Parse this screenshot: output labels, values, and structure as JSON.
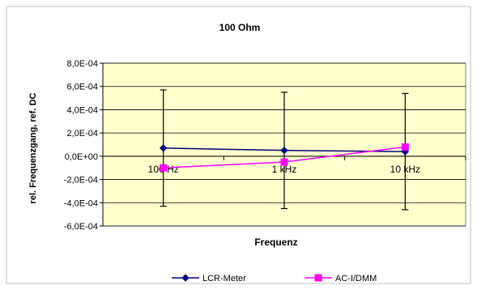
{
  "chart_data": {
    "type": "line",
    "title": "100 Ohm",
    "xlabel": "Frequenz",
    "ylabel": "rel. Frequenzgang, ref. DC",
    "categories": [
      "100 Hz",
      "1 kHz",
      "10 kHz"
    ],
    "ylim": [
      -0.0006,
      0.0008
    ],
    "yticks": [
      0.0008,
      0.0006,
      0.0004,
      0.0002,
      0.0,
      -0.0002,
      -0.0004,
      -0.0006
    ],
    "ytick_labels": [
      "8,0E-04",
      "6,0E-04",
      "4,0E-04",
      "2,0E-04",
      "0,0E+00",
      "-2,0E-04",
      "-4,0E-04",
      "-6,0E-04"
    ],
    "grid": true,
    "legend_position": "bottom",
    "series": [
      {
        "name": "LCR-Meter",
        "color": "#000080",
        "marker": "diamond",
        "values": [
          7e-05,
          5e-05,
          4e-05
        ],
        "error_low": [
          -0.00043,
          -0.00045,
          -0.00046
        ],
        "error_high": [
          0.00057,
          0.00055,
          0.00054
        ]
      },
      {
        "name": "AC-I/DMM",
        "color": "#ff00ff",
        "marker": "square",
        "values": [
          -0.0001,
          -5e-05,
          8e-05
        ]
      }
    ],
    "plot_background": "#ffffcc"
  }
}
